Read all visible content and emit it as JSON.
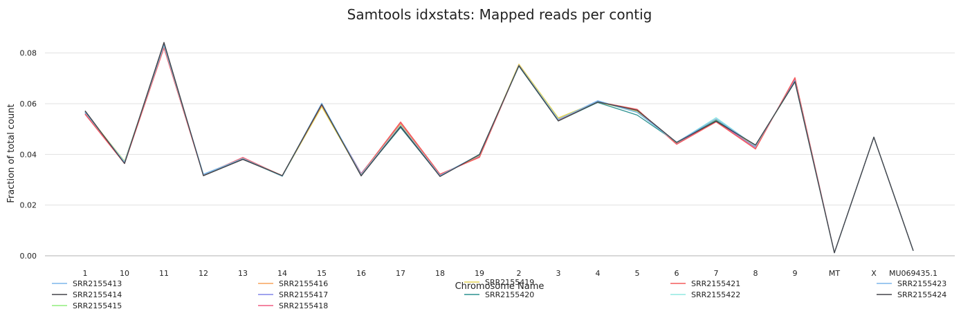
{
  "chart_data": {
    "type": "line",
    "title": "Samtools idxstats: Mapped reads per contig",
    "xlabel": "Chromosome Name",
    "ylabel": "Fraction of total count",
    "ylim": [
      0,
      0.09
    ],
    "yticks": [
      0,
      0.02,
      0.04,
      0.06,
      0.08
    ],
    "ytick_labels": [
      "0.00",
      "0.02",
      "0.04",
      "0.06",
      "0.08"
    ],
    "grid": "horizontal",
    "legend_placement": "bottom",
    "categories": [
      "1",
      "10",
      "11",
      "12",
      "13",
      "14",
      "15",
      "16",
      "17",
      "18",
      "19",
      "2",
      "3",
      "4",
      "5",
      "6",
      "7",
      "8",
      "9",
      "MT",
      "X",
      "MU069435.1"
    ],
    "series": [
      {
        "name": "SRR2155413",
        "color": "#7cb5ec",
        "values": [
          0.0565,
          0.037,
          0.083,
          0.0322,
          0.0384,
          0.0314,
          0.0602,
          0.0318,
          0.0512,
          0.0318,
          0.0398,
          0.075,
          0.0537,
          0.0612,
          0.0567,
          0.0448,
          0.0538,
          0.0434,
          0.069,
          0.0012,
          0.0468,
          0.002
        ]
      },
      {
        "name": "SRR2155414",
        "color": "#434348",
        "values": [
          0.0572,
          0.0364,
          0.0842,
          0.0316,
          0.038,
          0.0316,
          0.0596,
          0.0315,
          0.051,
          0.0313,
          0.0399,
          0.075,
          0.0532,
          0.0607,
          0.0575,
          0.0447,
          0.0531,
          0.0437,
          0.0687,
          0.0012,
          0.0468,
          0.002
        ]
      },
      {
        "name": "SRR2155415",
        "color": "#90ed7d",
        "values": [
          0.0566,
          0.0373,
          0.0827,
          0.032,
          0.0384,
          0.0316,
          0.0592,
          0.032,
          0.052,
          0.0318,
          0.0396,
          0.0753,
          0.054,
          0.0607,
          0.057,
          0.0446,
          0.0535,
          0.0432,
          0.0693,
          0.0012,
          0.0468,
          0.002
        ]
      },
      {
        "name": "SRR2155416",
        "color": "#f7a35c",
        "values": [
          0.0566,
          0.0372,
          0.0828,
          0.032,
          0.0386,
          0.0316,
          0.0592,
          0.0322,
          0.0522,
          0.0319,
          0.0394,
          0.0754,
          0.054,
          0.0606,
          0.0572,
          0.0446,
          0.0534,
          0.043,
          0.0694,
          0.0012,
          0.0468,
          0.002
        ]
      },
      {
        "name": "SRR2155417",
        "color": "#8085e9",
        "values": [
          0.0562,
          0.0366,
          0.0832,
          0.0318,
          0.0385,
          0.0315,
          0.0596,
          0.0325,
          0.0518,
          0.0318,
          0.0392,
          0.0752,
          0.0536,
          0.0606,
          0.0575,
          0.0442,
          0.0532,
          0.0428,
          0.0697,
          0.0012,
          0.0468,
          0.002
        ]
      },
      {
        "name": "SRR2155418",
        "color": "#f15c80",
        "values": [
          0.0558,
          0.0364,
          0.082,
          0.0318,
          0.0388,
          0.0315,
          0.0594,
          0.0323,
          0.0525,
          0.032,
          0.039,
          0.0752,
          0.0536,
          0.0607,
          0.0576,
          0.044,
          0.053,
          0.0423,
          0.07,
          0.0012,
          0.0468,
          0.002
        ]
      },
      {
        "name": "SRR2155419",
        "color": "#e4d354",
        "values": [
          0.0568,
          0.0372,
          0.0828,
          0.032,
          0.0384,
          0.0315,
          0.0588,
          0.0318,
          0.0518,
          0.0316,
          0.0396,
          0.0756,
          0.0544,
          0.0608,
          0.0566,
          0.0446,
          0.0536,
          0.0432,
          0.0688,
          0.0012,
          0.0468,
          0.002
        ]
      },
      {
        "name": "SRR2155420",
        "color": "#2b908f",
        "values": [
          0.0568,
          0.0366,
          0.0836,
          0.0318,
          0.0382,
          0.0314,
          0.0596,
          0.0318,
          0.0506,
          0.0314,
          0.04,
          0.0748,
          0.0532,
          0.0605,
          0.0555,
          0.0448,
          0.0534,
          0.0436,
          0.0686,
          0.0012,
          0.0468,
          0.002
        ]
      },
      {
        "name": "SRR2155421",
        "color": "#f45b5b",
        "values": [
          0.056,
          0.0365,
          0.0822,
          0.032,
          0.0386,
          0.0316,
          0.0595,
          0.0322,
          0.0528,
          0.0322,
          0.0388,
          0.0752,
          0.0535,
          0.0607,
          0.0578,
          0.044,
          0.0528,
          0.0421,
          0.0703,
          0.0012,
          0.0468,
          0.002
        ]
      },
      {
        "name": "SRR2155422",
        "color": "#91e8e1",
        "values": [
          0.0566,
          0.037,
          0.083,
          0.0321,
          0.0384,
          0.0315,
          0.06,
          0.032,
          0.0514,
          0.0316,
          0.0398,
          0.0751,
          0.0538,
          0.061,
          0.0565,
          0.0447,
          0.0545,
          0.0433,
          0.069,
          0.0012,
          0.0468,
          0.002
        ]
      },
      {
        "name": "SRR2155423",
        "color": "#7cb5ec",
        "values": [
          0.0567,
          0.0369,
          0.0833,
          0.0321,
          0.0383,
          0.0315,
          0.0601,
          0.0318,
          0.0513,
          0.0317,
          0.0398,
          0.075,
          0.0537,
          0.0611,
          0.0566,
          0.0448,
          0.054,
          0.0434,
          0.069,
          0.0012,
          0.0468,
          0.002
        ]
      },
      {
        "name": "SRR2155424",
        "color": "#434348",
        "values": [
          0.0571,
          0.0364,
          0.084,
          0.0316,
          0.0381,
          0.0316,
          0.0597,
          0.0316,
          0.051,
          0.0313,
          0.0399,
          0.075,
          0.0532,
          0.0607,
          0.0574,
          0.0447,
          0.0531,
          0.0437,
          0.0687,
          0.0012,
          0.0468,
          0.002
        ]
      }
    ]
  }
}
